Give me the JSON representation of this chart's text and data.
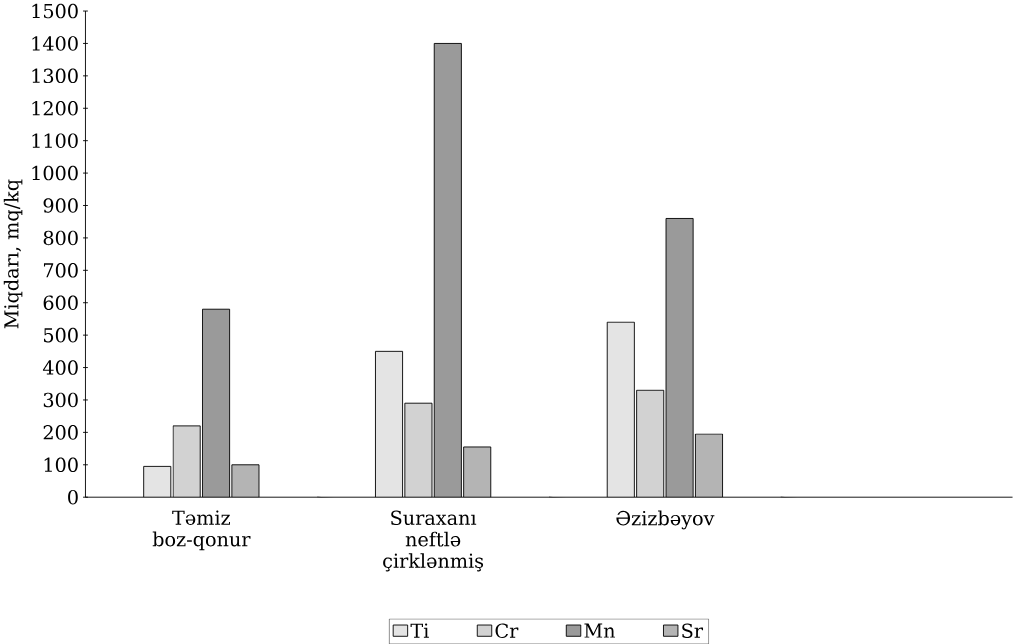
{
  "chart_data": {
    "type": "bar",
    "ylabel": "Miqdarı, mq/kq",
    "categories": [
      "Təmiz boz-qonur",
      "Suraxanı neftlə çirklənmiş",
      "Əzizbəyov"
    ],
    "series": [
      {
        "name": "Ti",
        "color": "#e4e4e4",
        "values": [
          95,
          450,
          540
        ]
      },
      {
        "name": "Cr",
        "color": "#d2d2d2",
        "values": [
          220,
          290,
          330
        ]
      },
      {
        "name": "Mn",
        "color": "#9a9a9a",
        "values": [
          580,
          1400,
          860
        ]
      },
      {
        "name": "Sr",
        "color": "#b4b4b4",
        "values": [
          100,
          155,
          195
        ]
      }
    ],
    "ylim": [
      0,
      1500
    ],
    "yticks": [
      0,
      100,
      200,
      300,
      400,
      500,
      600,
      700,
      800,
      900,
      1000,
      1100,
      1200,
      1300,
      1400,
      1500
    ],
    "legend": "bottom",
    "grid": false
  }
}
